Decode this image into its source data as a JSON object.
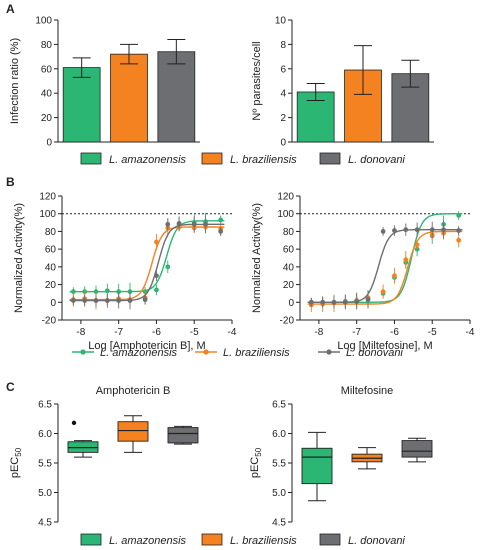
{
  "panels": {
    "a": "A",
    "b": "B",
    "c": "C"
  },
  "colors": {
    "L. amazonensis": "#2bb673",
    "L. braziliensis": "#f58220",
    "L. donovani": "#6d6e71"
  },
  "chart_data": [
    {
      "type": "bar",
      "panel": "A",
      "categories": [
        "L. amazonensis",
        "L. braziliensis",
        "L. donovani"
      ],
      "values": [
        61,
        72,
        74
      ],
      "errors": [
        8,
        8,
        10
      ],
      "ylabel": "Infection ratio (%)",
      "ylim": [
        0,
        100
      ],
      "yticks": [
        "0",
        "20",
        "40",
        "60",
        "80",
        "100"
      ],
      "legend": "bottom"
    },
    {
      "type": "bar",
      "panel": "A",
      "categories": [
        "L. amazonensis",
        "L. braziliensis",
        "L. donovani"
      ],
      "values": [
        4.1,
        5.9,
        5.6
      ],
      "errors": [
        0.7,
        2.0,
        1.1
      ],
      "ylabel": "Nº parasites/cell",
      "ylim": [
        0,
        10
      ],
      "yticks": [
        "0",
        "2",
        "4",
        "6",
        "8",
        "10"
      ]
    },
    {
      "type": "line",
      "panel": "B",
      "xlabel": "Log [Amphotericin B], M",
      "ylabel": "Normalized Activity(%)",
      "xlim": [
        -8.5,
        -4
      ],
      "ylim": [
        -20,
        120
      ],
      "xticks": [
        "-8",
        "-7",
        "-6",
        "-5",
        "-4"
      ],
      "yticks": [
        "-20",
        "0",
        "20",
        "40",
        "60",
        "80",
        "100",
        "120"
      ],
      "reference_line": 100,
      "series": [
        {
          "name": "L. amazonensis",
          "x": [
            -8.2,
            -7.9,
            -7.6,
            -7.3,
            -7.0,
            -6.7,
            -6.3,
            -6.0,
            -5.7,
            -5.4,
            -5.0,
            -4.7,
            -4.3
          ],
          "y": [
            12,
            12,
            12,
            13,
            12,
            12,
            12,
            14,
            40,
            88,
            90,
            91,
            93
          ],
          "ec50": -5.73,
          "top": 92,
          "bottom": 12
        },
        {
          "name": "L. braziliensis",
          "x": [
            -8.2,
            -7.9,
            -7.6,
            -7.3,
            -7.0,
            -6.7,
            -6.3,
            -6.0,
            -5.7,
            -5.4,
            -5.0,
            -4.7,
            -4.3
          ],
          "y": [
            3,
            4,
            2,
            2,
            4,
            3,
            5,
            68,
            84,
            85,
            84,
            85,
            83
          ],
          "ec50": -6.12,
          "top": 85,
          "bottom": 3
        },
        {
          "name": "L. donovani",
          "x": [
            -8.2,
            -7.9,
            -7.6,
            -7.3,
            -7.0,
            -6.7,
            -6.3,
            -6.0,
            -5.7,
            -5.4,
            -5.0,
            -4.7,
            -4.3
          ],
          "y": [
            2,
            2,
            2,
            2,
            2,
            2,
            3,
            30,
            88,
            89,
            88,
            88,
            80
          ],
          "ec50": -5.95,
          "top": 88,
          "bottom": 2
        }
      ]
    },
    {
      "type": "line",
      "panel": "B",
      "xlabel": "Log [Miltefosine], M",
      "ylabel": "Normalized Activity(%)",
      "xlim": [
        -8.5,
        -4
      ],
      "ylim": [
        -20,
        120
      ],
      "xticks": [
        "-8",
        "-7",
        "-6",
        "-5",
        "-4"
      ],
      "yticks": [
        "-20",
        "0",
        "20",
        "40",
        "60",
        "80",
        "100",
        "120"
      ],
      "reference_line": 100,
      "series": [
        {
          "name": "L. amazonensis",
          "x": [
            -8.2,
            -7.9,
            -7.6,
            -7.3,
            -7.0,
            -6.7,
            -6.3,
            -6.0,
            -5.7,
            -5.4,
            -5.0,
            -4.7,
            -4.3
          ],
          "y": [
            0,
            0,
            0,
            1,
            2,
            4,
            10,
            28,
            45,
            60,
            75,
            88,
            98
          ],
          "ec50": -5.55,
          "top": 100,
          "bottom": 0
        },
        {
          "name": "L. braziliensis",
          "x": [
            -8.2,
            -7.9,
            -7.6,
            -7.3,
            -7.0,
            -6.7,
            -6.3,
            -6.0,
            -5.7,
            -5.4,
            -5.0,
            -4.7,
            -4.3
          ],
          "y": [
            -3,
            -2,
            -1,
            0,
            2,
            5,
            12,
            30,
            48,
            65,
            76,
            78,
            70
          ],
          "ec50": -5.65,
          "top": 80,
          "bottom": -2
        },
        {
          "name": "L. donovani",
          "x": [
            -8.2,
            -7.9,
            -7.6,
            -7.3,
            -7.0,
            -6.7,
            -6.3,
            -6.0,
            -5.7,
            -5.4,
            -5.0,
            -4.7,
            -4.3
          ],
          "y": [
            0,
            0,
            0,
            0,
            1,
            3,
            80,
            81,
            82,
            82,
            82,
            82,
            81
          ],
          "ec50": -6.42,
          "top": 82,
          "bottom": 0
        }
      ]
    },
    {
      "type": "box",
      "panel": "C",
      "title": "Amphotericin B",
      "ylabel": "pEC50",
      "ylim": [
        4.5,
        6.5
      ],
      "yticks": [
        "4.5",
        "5.0",
        "5.5",
        "6.0",
        "6.5"
      ],
      "categories": [
        "L. amazonensis",
        "L. braziliensis",
        "L. donovani"
      ],
      "boxes": [
        {
          "min": 5.6,
          "q1": 5.68,
          "median": 5.76,
          "q3": 5.86,
          "max": 5.88,
          "outliers": [
            6.18
          ]
        },
        {
          "min": 5.68,
          "q1": 5.87,
          "median": 6.05,
          "q3": 6.2,
          "max": 6.3,
          "outliers": []
        },
        {
          "min": 5.82,
          "q1": 5.84,
          "median": 6.0,
          "q3": 6.1,
          "max": 6.12,
          "outliers": []
        }
      ]
    },
    {
      "type": "box",
      "panel": "C",
      "title": "Miltefosine",
      "ylabel": "pEC50",
      "ylim": [
        4.5,
        6.5
      ],
      "yticks": [
        "4.5",
        "5.0",
        "5.5",
        "6.0",
        "6.5"
      ],
      "categories": [
        "L. amazonensis",
        "L. braziliensis",
        "L. donovani"
      ],
      "boxes": [
        {
          "min": 4.86,
          "q1": 5.15,
          "median": 5.6,
          "q3": 5.75,
          "max": 6.02,
          "outliers": []
        },
        {
          "min": 5.4,
          "q1": 5.52,
          "median": 5.58,
          "q3": 5.65,
          "max": 5.76,
          "outliers": []
        },
        {
          "min": 5.52,
          "q1": 5.6,
          "median": 5.7,
          "q3": 5.88,
          "max": 5.92,
          "outliers": []
        }
      ]
    }
  ]
}
